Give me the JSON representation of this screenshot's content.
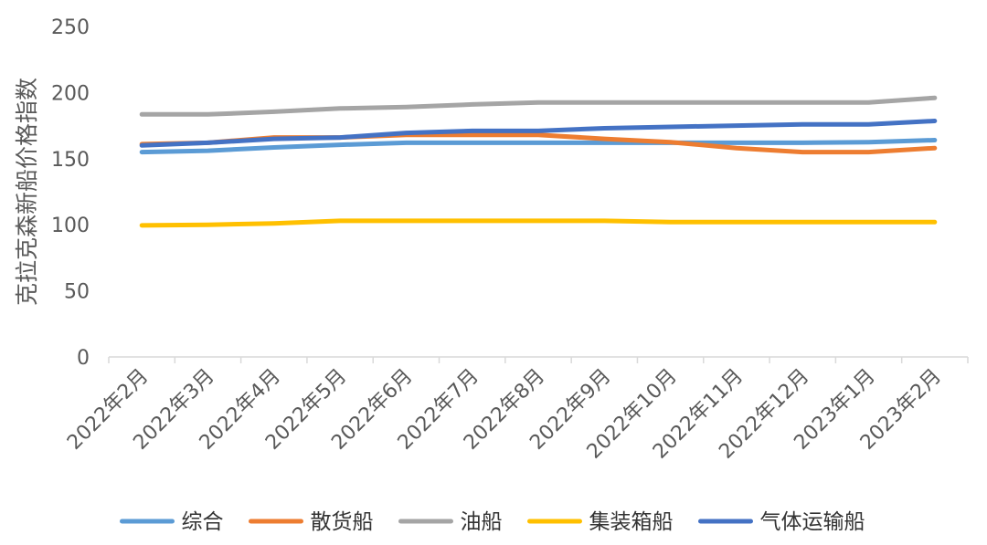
{
  "chart_data": {
    "type": "line",
    "title": "",
    "xlabel": "",
    "ylabel": "克拉克森新船价格指数",
    "ylim": [
      0,
      250
    ],
    "yticks": [
      0,
      50,
      100,
      150,
      200,
      250
    ],
    "grid": false,
    "legend_position": "bottom",
    "categories": [
      "2022年2月",
      "2022年3月",
      "2022年4月",
      "2022年5月",
      "2022年6月",
      "2022年7月",
      "2022年8月",
      "2022年9月",
      "2022年10月",
      "2022年11月",
      "2022年12月",
      "2023年1月",
      "2023年2月"
    ],
    "series": [
      {
        "name": "综合",
        "color": "#5B9BD5",
        "values": [
          155,
          156,
          158.5,
          160.5,
          162,
          162,
          162,
          162,
          162,
          162,
          162,
          162.5,
          164
        ]
      },
      {
        "name": "散货船",
        "color": "#ED7D31",
        "values": [
          161,
          162,
          166,
          166,
          168,
          168,
          168,
          165,
          162.5,
          158,
          155,
          155,
          158
        ]
      },
      {
        "name": "油船",
        "color": "#A5A5A5",
        "values": [
          183.5,
          183.5,
          185.5,
          188,
          189,
          191,
          192.5,
          192.5,
          192.5,
          192.5,
          192.5,
          192.5,
          196
        ]
      },
      {
        "name": "集装箱船",
        "color": "#FFC000",
        "values": [
          99.5,
          100,
          101,
          103,
          103,
          103,
          103,
          103,
          102,
          102,
          102,
          102,
          102
        ]
      },
      {
        "name": "气体运输船",
        "color": "#4472C4",
        "values": [
          160,
          162,
          165,
          166,
          169.5,
          171,
          171,
          173,
          174,
          175,
          176,
          176,
          178.5
        ]
      }
    ]
  }
}
